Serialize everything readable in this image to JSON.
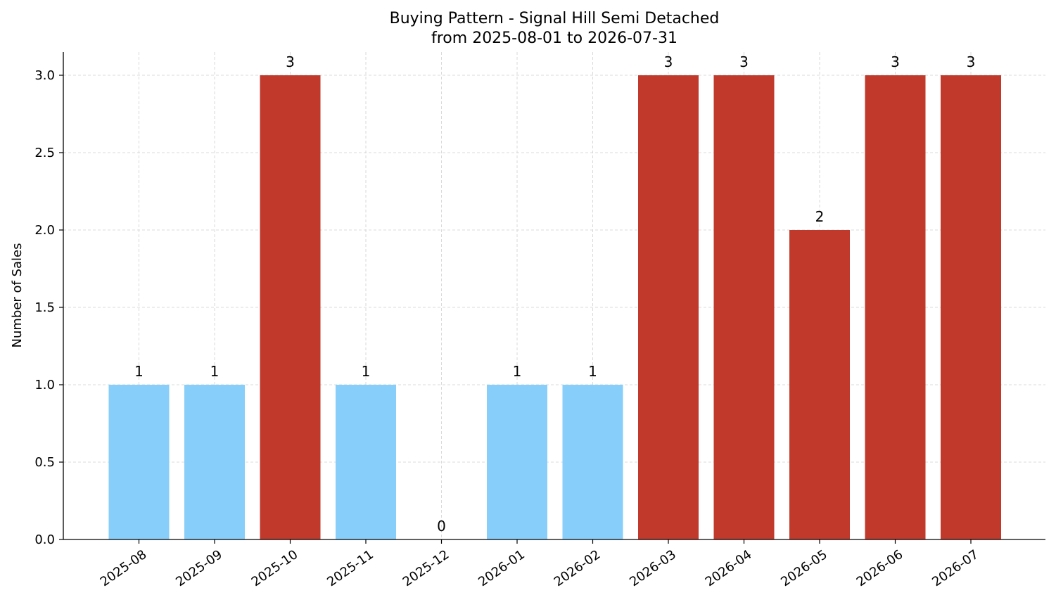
{
  "chart_data": {
    "type": "bar",
    "title": "Buying Pattern - Signal Hill Semi Detached",
    "subtitle": "from 2025-08-01 to 2026-07-31",
    "xlabel": "",
    "ylabel": "Number of Sales",
    "ylim": [
      0,
      3.15
    ],
    "yticks": [
      "0.0",
      "0.5",
      "1.0",
      "1.5",
      "2.0",
      "2.5",
      "3.0"
    ],
    "grid": true,
    "categories": [
      "2025-08",
      "2025-09",
      "2025-10",
      "2025-11",
      "2025-12",
      "2026-01",
      "2026-02",
      "2026-03",
      "2026-04",
      "2026-05",
      "2026-06",
      "2026-07"
    ],
    "values": [
      1,
      1,
      3,
      1,
      0,
      1,
      1,
      3,
      3,
      2,
      3,
      3
    ],
    "data_labels": [
      "1",
      "1",
      "3",
      "1",
      "0",
      "1",
      "1",
      "3",
      "3",
      "2",
      "3",
      "3"
    ],
    "colors": {
      "low": "#87cefa",
      "high": "#c0392b"
    },
    "bar_colors": [
      "low",
      "low",
      "high",
      "low",
      "low",
      "low",
      "low",
      "high",
      "high",
      "high",
      "high",
      "high"
    ]
  }
}
